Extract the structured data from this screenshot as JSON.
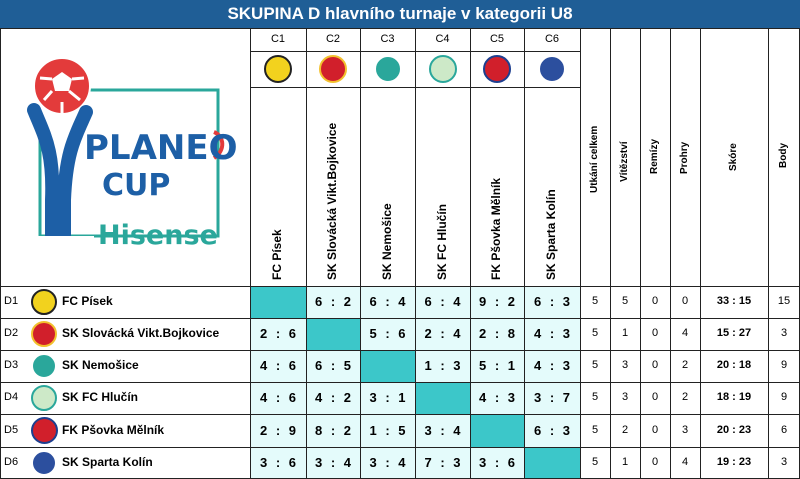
{
  "title": "SKUPINA D hlavního turnaje v kategorii U8",
  "logo": {
    "brand": "PLANEO",
    "sub": "CUP",
    "sponsor": "Hisense"
  },
  "stat_headers": [
    "Utkání celkem",
    "Vítězství",
    "Remízy",
    "Prohry",
    "Skóre",
    "Body"
  ],
  "teams": [
    {
      "col_code": "C1",
      "row_code": "D1",
      "name": "FC Písek",
      "badge_text": "FC PÍSEK",
      "badge_icon": "soccer-ball-badge-icon",
      "results": [
        "",
        "6 : 2",
        "6 : 4",
        "6 : 4",
        "9 : 2",
        "6 : 3"
      ],
      "played": "5",
      "wins": "5",
      "draws": "0",
      "losses": "0",
      "score": "33 : 15",
      "points": "15"
    },
    {
      "col_code": "C2",
      "row_code": "D2",
      "name": "SK Slovácká Vikt.Bojkovice",
      "badge_text": "",
      "badge_icon": "shield-crest-badge-icon",
      "results": [
        "2 : 6",
        "",
        "5 : 6",
        "2 : 4",
        "2 : 8",
        "4 : 3"
      ],
      "played": "5",
      "wins": "1",
      "draws": "0",
      "losses": "4",
      "score": "15 : 27",
      "points": "3"
    },
    {
      "col_code": "C3",
      "row_code": "D3",
      "name": "SK Nemošice",
      "badge_text": "",
      "badge_icon": "castle-shield-badge-icon",
      "results": [
        "4 : 6",
        "6 : 5",
        "",
        "1 : 3",
        "5 : 1",
        "4 : 3"
      ],
      "played": "5",
      "wins": "3",
      "draws": "0",
      "losses": "2",
      "score": "20 : 18",
      "points": "9"
    },
    {
      "col_code": "C4",
      "row_code": "D4",
      "name": "SK FC Hlučín",
      "badge_text": "FC HLUČÍN",
      "badge_icon": "green-shield-badge-icon",
      "results": [
        "4 : 6",
        "4 : 2",
        "3 : 1",
        "",
        "4 : 3",
        "3 : 7"
      ],
      "played": "5",
      "wins": "3",
      "draws": "0",
      "losses": "2",
      "score": "18 : 19",
      "points": "9"
    },
    {
      "col_code": "C5",
      "row_code": "D5",
      "name": "FK Pšovka Mělník",
      "badge_text": "",
      "badge_icon": "red-blue-circle-badge-icon",
      "results": [
        "2 : 9",
        "8 : 2",
        "1 : 5",
        "3 : 4",
        "",
        "6 : 3"
      ],
      "played": "5",
      "wins": "2",
      "draws": "0",
      "losses": "3",
      "score": "20 : 23",
      "points": "6"
    },
    {
      "col_code": "C6",
      "row_code": "D6",
      "name": "SK Sparta Kolín",
      "badge_text": "SK SPARTA KOLÍN",
      "badge_icon": "blue-circle-badge-icon",
      "results": [
        "3 : 6",
        "3 : 4",
        "3 : 4",
        "7 : 3",
        "3 : 6",
        ""
      ],
      "played": "5",
      "wins": "1",
      "draws": "0",
      "losses": "4",
      "score": "19 : 23",
      "points": "3"
    }
  ],
  "colors": {
    "banner": "#1f5e96",
    "diagonal": "#3cc7c9",
    "played_cell": "#e4fbfb",
    "logo_blue": "#1d5fa6",
    "logo_teal": "#2aa79b",
    "logo_red": "#e33b3b"
  }
}
